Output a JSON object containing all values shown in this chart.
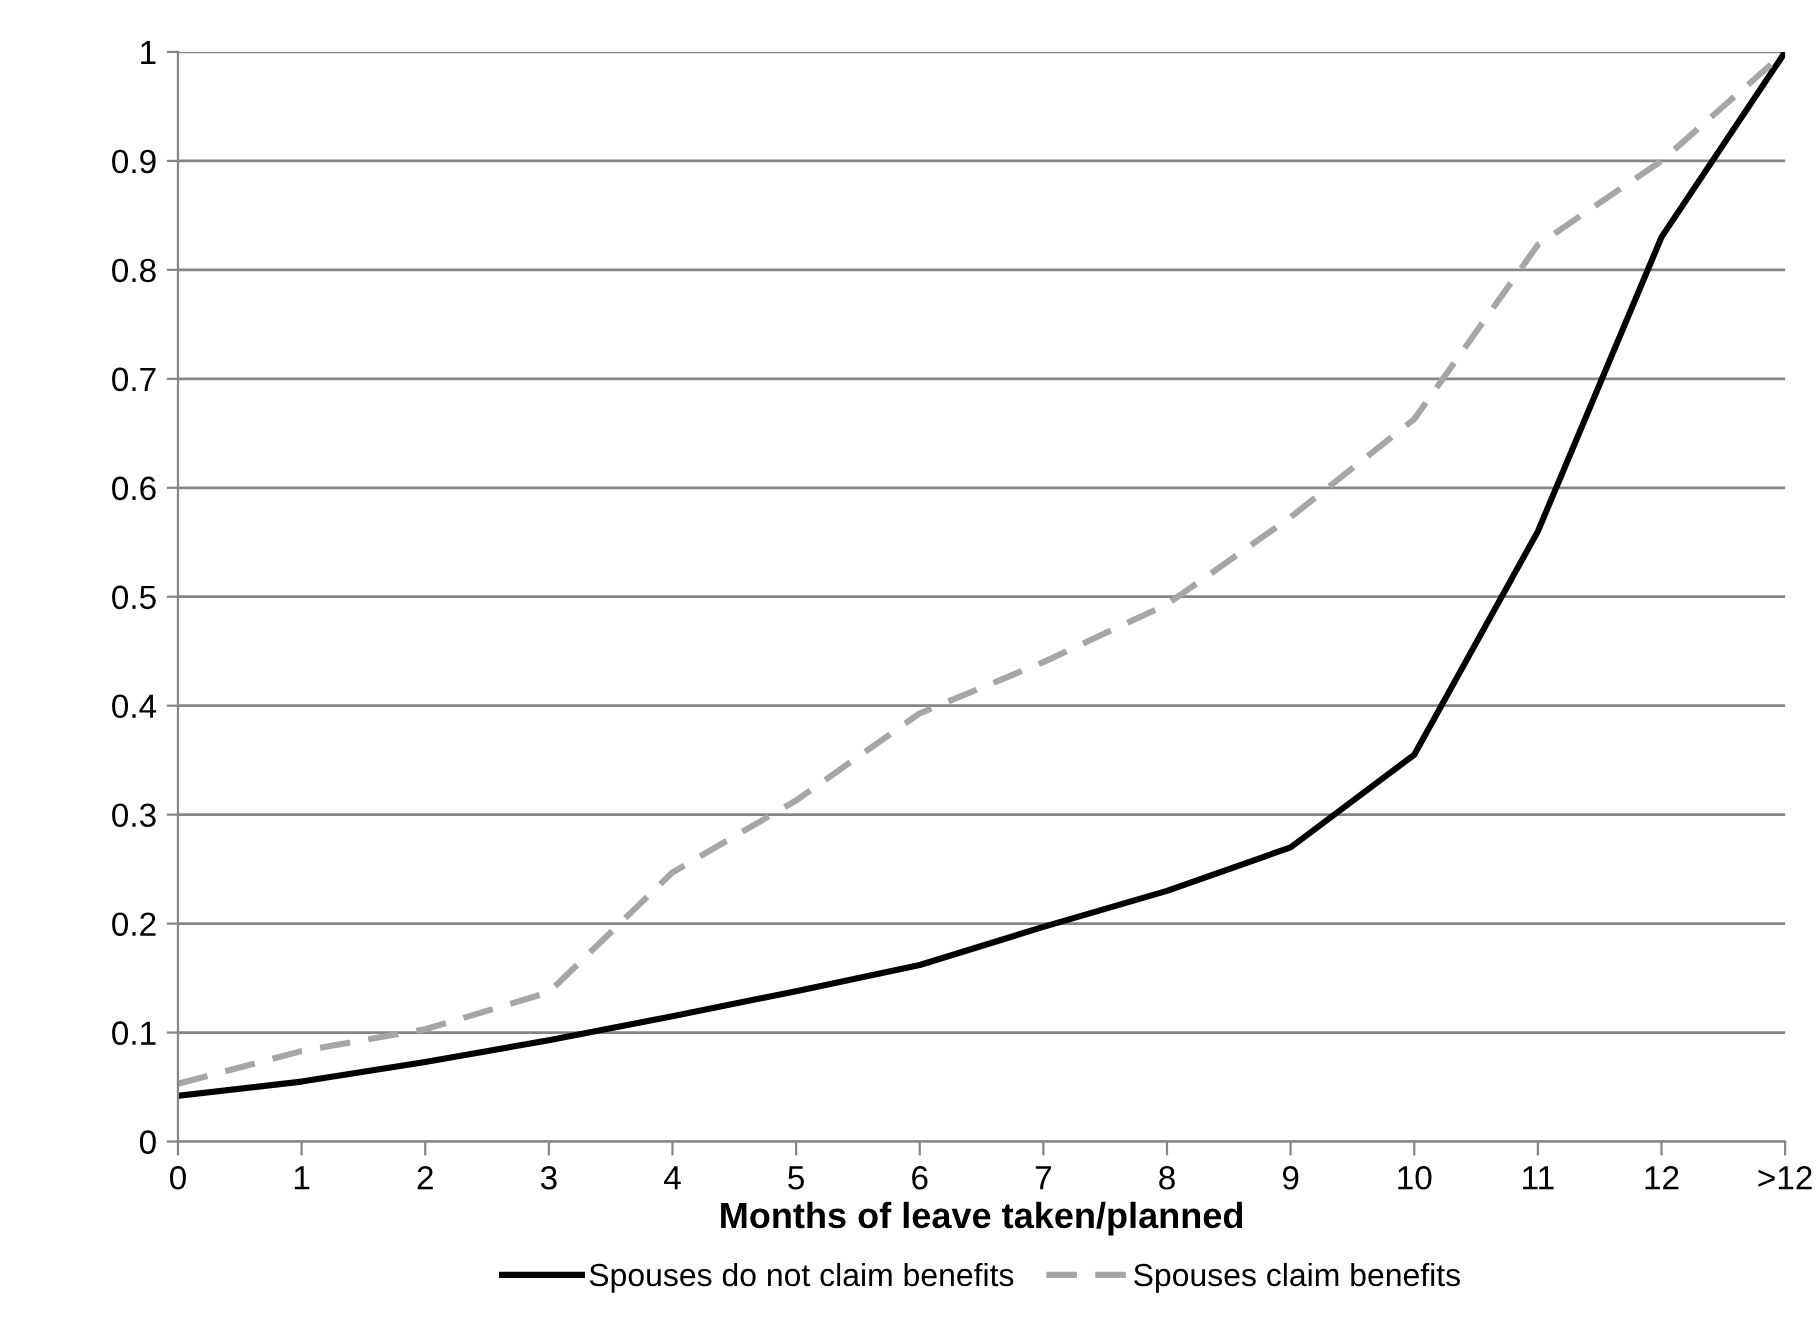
{
  "chart_data": {
    "type": "line",
    "xlabel": "Months of leave taken/planned",
    "categories": [
      "0",
      "1",
      "2",
      "3",
      "4",
      "5",
      "6",
      "7",
      "8",
      "9",
      "10",
      "11",
      "12",
      ">12"
    ],
    "series": [
      {
        "name": "Spouses do not claim benefits",
        "color": "#000000",
        "line_style": "solid",
        "values": [
          0.042,
          0.055,
          0.073,
          0.093,
          0.115,
          0.138,
          0.162,
          0.197,
          0.23,
          0.27,
          0.355,
          0.56,
          0.83,
          1
        ]
      },
      {
        "name": "Spouses claim benefits",
        "color": "#a6a6a6",
        "line_style": "dashed",
        "values": [
          0.053,
          0.083,
          0.103,
          0.137,
          0.247,
          0.313,
          0.393,
          0.44,
          0.493,
          0.573,
          0.663,
          0.823,
          0.9,
          1
        ]
      }
    ],
    "ylim": [
      0,
      1
    ],
    "yticks": [
      0,
      0.1,
      0.2,
      0.3,
      0.4,
      0.5,
      0.6,
      0.7,
      0.8,
      0.9,
      1
    ],
    "grid": "y",
    "legend": "bottom",
    "marker": "none"
  }
}
